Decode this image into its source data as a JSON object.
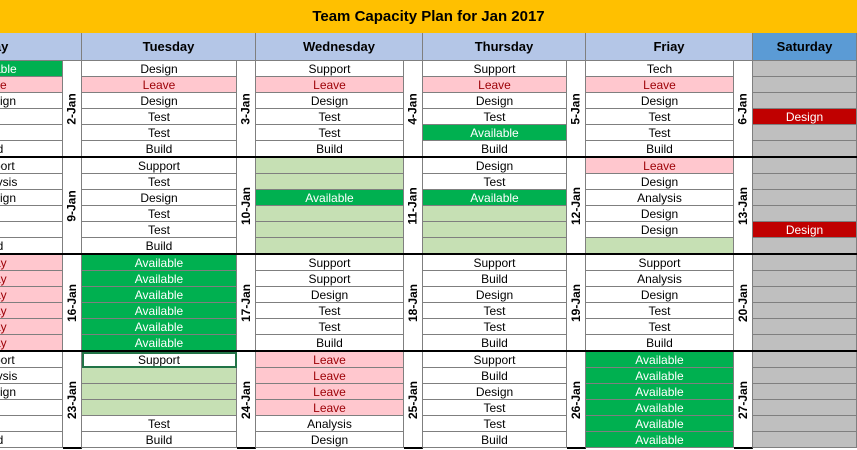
{
  "title": "Team Capacity Plan for Jan 2017",
  "headers": [
    "nday",
    "Tuesday",
    "Wednesday",
    "Thursday",
    "Friay",
    "Saturday"
  ],
  "colors": {
    "available": "#00b050",
    "leave": "#ffc7ce",
    "leave_text": "#9c0006",
    "light_green": "#c6e0b4",
    "design_red": "#c00000",
    "grey": "#bfbfbf",
    "white": "#ffffff"
  },
  "date_labels": [
    [
      "2-Jan",
      "3-Jan",
      "4-Jan",
      "5-Jan",
      "6-Jan"
    ],
    [
      "9-Jan",
      "10-Jan",
      "11-Jan",
      "12-Jan",
      "13-Jan"
    ],
    [
      "16-Jan",
      "17-Jan",
      "18-Jan",
      "19-Jan",
      "20-Jan"
    ],
    [
      "23-Jan",
      "24-Jan",
      "25-Jan",
      "26-Jan",
      "27-Jan"
    ]
  ],
  "weeks": [
    {
      "mon": [
        {
          "t": "able",
          "s": "a"
        },
        {
          "t": "ve",
          "s": "l"
        },
        {
          "t": "sign",
          "s": "w"
        },
        {
          "t": "t",
          "s": "w"
        },
        {
          "t": "t",
          "s": "w"
        },
        {
          "t": "ld",
          "s": "w"
        }
      ],
      "tue": [
        {
          "t": "Design",
          "s": "w"
        },
        {
          "t": "Leave",
          "s": "l"
        },
        {
          "t": "Design",
          "s": "w"
        },
        {
          "t": "Test",
          "s": "w"
        },
        {
          "t": "Test",
          "s": "w"
        },
        {
          "t": "Build",
          "s": "w"
        }
      ],
      "wed": [
        {
          "t": "Support",
          "s": "w"
        },
        {
          "t": "Leave",
          "s": "l"
        },
        {
          "t": "Design",
          "s": "w"
        },
        {
          "t": "Test",
          "s": "w"
        },
        {
          "t": "Test",
          "s": "w"
        },
        {
          "t": "Build",
          "s": "w"
        }
      ],
      "thu": [
        {
          "t": "Support",
          "s": "w"
        },
        {
          "t": "Leave",
          "s": "l"
        },
        {
          "t": "Design",
          "s": "w"
        },
        {
          "t": "Test",
          "s": "w"
        },
        {
          "t": "Available",
          "s": "a"
        },
        {
          "t": "Build",
          "s": "w"
        }
      ],
      "fri": [
        {
          "t": "Tech",
          "s": "w"
        },
        {
          "t": "Leave",
          "s": "l"
        },
        {
          "t": "Design",
          "s": "w"
        },
        {
          "t": "Test",
          "s": "w"
        },
        {
          "t": "Test",
          "s": "w"
        },
        {
          "t": "Build",
          "s": "w"
        }
      ],
      "sat": [
        {
          "t": "",
          "s": "g"
        },
        {
          "t": "",
          "s": "g"
        },
        {
          "t": "",
          "s": "g"
        },
        {
          "t": "Design",
          "s": "r"
        },
        {
          "t": "",
          "s": "g"
        },
        {
          "t": "",
          "s": "g"
        }
      ]
    },
    {
      "mon": [
        {
          "t": "port",
          "s": "w"
        },
        {
          "t": "lysis",
          "s": "w"
        },
        {
          "t": "sign",
          "s": "w"
        },
        {
          "t": "t",
          "s": "w"
        },
        {
          "t": "t",
          "s": "w"
        },
        {
          "t": "ld",
          "s": "w"
        }
      ],
      "tue": [
        {
          "t": "Support",
          "s": "w"
        },
        {
          "t": "Test",
          "s": "w"
        },
        {
          "t": "Design",
          "s": "w"
        },
        {
          "t": "Test",
          "s": "w"
        },
        {
          "t": "Test",
          "s": "w"
        },
        {
          "t": "Build",
          "s": "w"
        }
      ],
      "wed": [
        {
          "t": "",
          "s": "p"
        },
        {
          "t": "",
          "s": "p"
        },
        {
          "t": "Available",
          "s": "a"
        },
        {
          "t": "",
          "s": "p"
        },
        {
          "t": "",
          "s": "p"
        },
        {
          "t": "",
          "s": "p"
        }
      ],
      "thu": [
        {
          "t": "Design",
          "s": "w"
        },
        {
          "t": "Test",
          "s": "w"
        },
        {
          "t": "Available",
          "s": "a"
        },
        {
          "t": "",
          "s": "p"
        },
        {
          "t": "",
          "s": "p"
        },
        {
          "t": "",
          "s": "p"
        }
      ],
      "fri": [
        {
          "t": "Leave",
          "s": "l"
        },
        {
          "t": "Design",
          "s": "w"
        },
        {
          "t": "Analysis",
          "s": "w"
        },
        {
          "t": "Design",
          "s": "w"
        },
        {
          "t": "Design",
          "s": "w"
        },
        {
          "t": "",
          "s": "p"
        }
      ],
      "sat": [
        {
          "t": "",
          "s": "g"
        },
        {
          "t": "",
          "s": "g"
        },
        {
          "t": "",
          "s": "g"
        },
        {
          "t": "",
          "s": "g"
        },
        {
          "t": "Design",
          "s": "r"
        },
        {
          "t": "",
          "s": "g"
        }
      ]
    },
    {
      "mon": [
        {
          "t": "ay",
          "s": "l"
        },
        {
          "t": "ay",
          "s": "l"
        },
        {
          "t": "ay",
          "s": "l"
        },
        {
          "t": "ay",
          "s": "l"
        },
        {
          "t": "ay",
          "s": "l"
        },
        {
          "t": "ay",
          "s": "l"
        }
      ],
      "tue": [
        {
          "t": "Available",
          "s": "a"
        },
        {
          "t": "Available",
          "s": "a"
        },
        {
          "t": "Available",
          "s": "a"
        },
        {
          "t": "Available",
          "s": "a"
        },
        {
          "t": "Available",
          "s": "a"
        },
        {
          "t": "Available",
          "s": "a"
        }
      ],
      "wed": [
        {
          "t": "Support",
          "s": "w"
        },
        {
          "t": "Support",
          "s": "w"
        },
        {
          "t": "Design",
          "s": "w"
        },
        {
          "t": "Test",
          "s": "w"
        },
        {
          "t": "Test",
          "s": "w"
        },
        {
          "t": "Build",
          "s": "w"
        }
      ],
      "thu": [
        {
          "t": "Support",
          "s": "w"
        },
        {
          "t": "Build",
          "s": "w"
        },
        {
          "t": "Design",
          "s": "w"
        },
        {
          "t": "Test",
          "s": "w"
        },
        {
          "t": "Test",
          "s": "w"
        },
        {
          "t": "Build",
          "s": "w"
        }
      ],
      "fri": [
        {
          "t": "Support",
          "s": "w"
        },
        {
          "t": "Analysis",
          "s": "w"
        },
        {
          "t": "Design",
          "s": "w"
        },
        {
          "t": "Test",
          "s": "w"
        },
        {
          "t": "Test",
          "s": "w"
        },
        {
          "t": "Build",
          "s": "w"
        }
      ],
      "sat": [
        {
          "t": "",
          "s": "g"
        },
        {
          "t": "",
          "s": "g"
        },
        {
          "t": "",
          "s": "g"
        },
        {
          "t": "",
          "s": "g"
        },
        {
          "t": "",
          "s": "g"
        },
        {
          "t": "",
          "s": "g"
        }
      ]
    },
    {
      "mon": [
        {
          "t": "port",
          "s": "w"
        },
        {
          "t": "lysis",
          "s": "w"
        },
        {
          "t": "sign",
          "s": "w"
        },
        {
          "t": "t",
          "s": "w"
        },
        {
          "t": "t",
          "s": "w"
        },
        {
          "t": "ld",
          "s": "w"
        }
      ],
      "tue": [
        {
          "t": "Support",
          "s": "w"
        },
        {
          "t": "",
          "s": "p"
        },
        {
          "t": "",
          "s": "p"
        },
        {
          "t": "",
          "s": "p"
        },
        {
          "t": "Test",
          "s": "w"
        },
        {
          "t": "Build",
          "s": "w"
        }
      ],
      "wed": [
        {
          "t": "Leave",
          "s": "l"
        },
        {
          "t": "Leave",
          "s": "l"
        },
        {
          "t": "Leave",
          "s": "l"
        },
        {
          "t": "Leave",
          "s": "l"
        },
        {
          "t": "Analysis",
          "s": "w"
        },
        {
          "t": "Design",
          "s": "w"
        }
      ],
      "thu": [
        {
          "t": "Support",
          "s": "w"
        },
        {
          "t": "Build",
          "s": "w"
        },
        {
          "t": "Design",
          "s": "w"
        },
        {
          "t": "Test",
          "s": "w"
        },
        {
          "t": "Test",
          "s": "w"
        },
        {
          "t": "Build",
          "s": "w"
        }
      ],
      "fri": [
        {
          "t": "Available",
          "s": "a"
        },
        {
          "t": "Available",
          "s": "a"
        },
        {
          "t": "Available",
          "s": "a"
        },
        {
          "t": "Available",
          "s": "a"
        },
        {
          "t": "Available",
          "s": "a"
        },
        {
          "t": "Available",
          "s": "a"
        }
      ],
      "sat": [
        {
          "t": "",
          "s": "g"
        },
        {
          "t": "",
          "s": "g"
        },
        {
          "t": "",
          "s": "g"
        },
        {
          "t": "",
          "s": "g"
        },
        {
          "t": "",
          "s": "g"
        },
        {
          "t": "",
          "s": "g"
        }
      ]
    }
  ]
}
